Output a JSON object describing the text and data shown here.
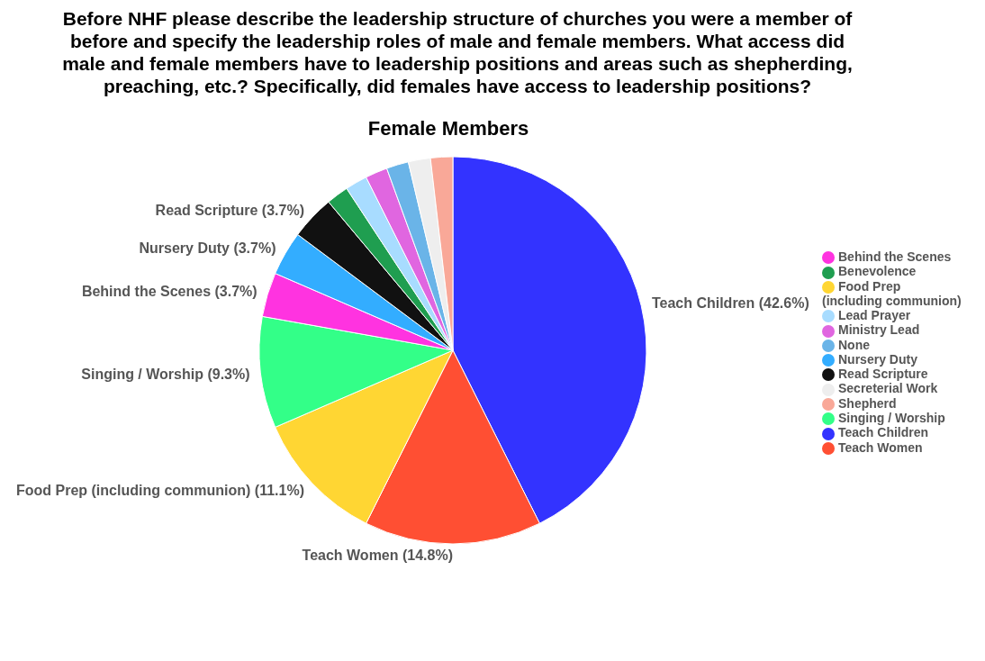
{
  "chart_data": {
    "type": "pie",
    "title": "Before NHF please describe the leadership structure of churches you were a member of before and specify the leadership roles of male and female members. What access did male and female members have to leadership positions and areas such as shepherding, preaching, etc.? Specifically, did females have access to leadership positions?",
    "subtitle": "Female Members",
    "categories": [
      "Teach Children",
      "Teach Women",
      "Food Prep (including communion)",
      "Singing / Worship",
      "Behind the Scenes",
      "Nursery Duty",
      "Read Scripture",
      "Benevolence",
      "Lead Prayer",
      "Ministry Lead",
      "None",
      "Secreterial Work",
      "Shepherd"
    ],
    "values": [
      42.6,
      14.8,
      11.1,
      9.3,
      3.7,
      3.7,
      3.7,
      1.85,
      1.85,
      1.85,
      1.85,
      1.85,
      1.85
    ],
    "colors": [
      "#3333ff",
      "#ff4f33",
      "#ffd633",
      "#33ff88",
      "#ff33e0",
      "#33adff",
      "#111111",
      "#1f9e50",
      "#a8dcff",
      "#e066e0",
      "#6ab4e8",
      "#eeeeee",
      "#f9a898"
    ],
    "value_labels": [
      "Teach Children (42.6%)",
      "Teach Women (14.8%)",
      "Food Prep (including communion) (11.1%)",
      "Singing / Worship (9.3%)",
      "Behind the Scenes (3.7%)",
      "Nursery Duty (3.7%)",
      "Read Scripture (3.7%)",
      null,
      null,
      null,
      null,
      null,
      null
    ],
    "legend": "right"
  }
}
